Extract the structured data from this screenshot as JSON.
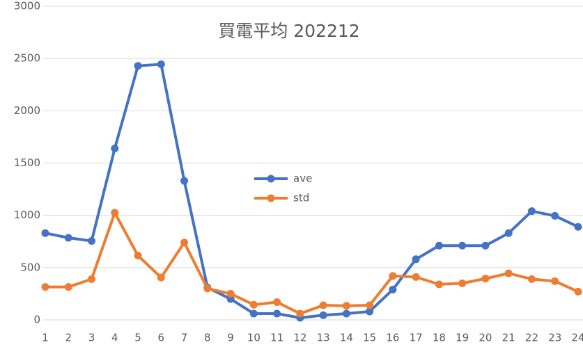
{
  "chart_data": {
    "type": "line",
    "title": "買電平均 202212",
    "categories": [
      "1",
      "2",
      "3",
      "4",
      "5",
      "6",
      "7",
      "8",
      "9",
      "10",
      "11",
      "12",
      "13",
      "14",
      "15",
      "16",
      "17",
      "18",
      "19",
      "20",
      "21",
      "22",
      "23",
      "24"
    ],
    "series": [
      {
        "name": "ave",
        "color": "#4472c4",
        "values": [
          830,
          785,
          755,
          1640,
          2430,
          2445,
          1330,
          310,
          200,
          60,
          60,
          20,
          45,
          60,
          80,
          290,
          580,
          710,
          710,
          710,
          830,
          1040,
          995,
          890
        ]
      },
      {
        "name": "std",
        "color": "#ed7d31",
        "values": [
          315,
          315,
          390,
          1025,
          615,
          405,
          740,
          300,
          250,
          145,
          170,
          60,
          140,
          135,
          140,
          420,
          410,
          340,
          350,
          395,
          445,
          390,
          370,
          270
        ]
      }
    ],
    "ylim": [
      0,
      3000
    ],
    "yticks": [
      0,
      500,
      1000,
      1500,
      2000,
      2500,
      3000
    ],
    "grid": true
  }
}
